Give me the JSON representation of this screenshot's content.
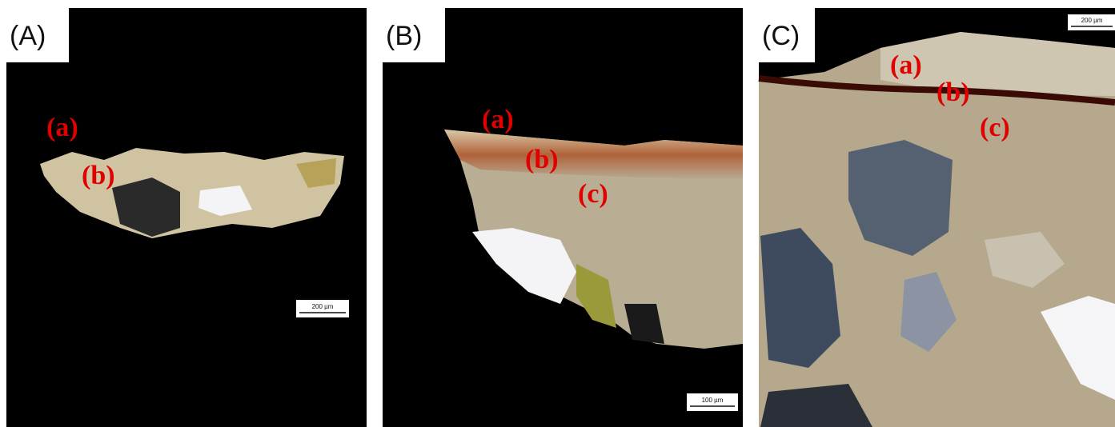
{
  "panels": [
    {
      "label": "(A)",
      "annotations": [
        "(a)",
        "(b)"
      ],
      "scale_bar": "200 µm"
    },
    {
      "label": "(B)",
      "annotations": [
        "(a)",
        "(b)",
        "(c)"
      ],
      "scale_bar": "100 µm"
    },
    {
      "label": "(C)",
      "annotations": [
        "(a)",
        "(b)",
        "(c)"
      ],
      "scale_bar": "200 µm"
    }
  ]
}
